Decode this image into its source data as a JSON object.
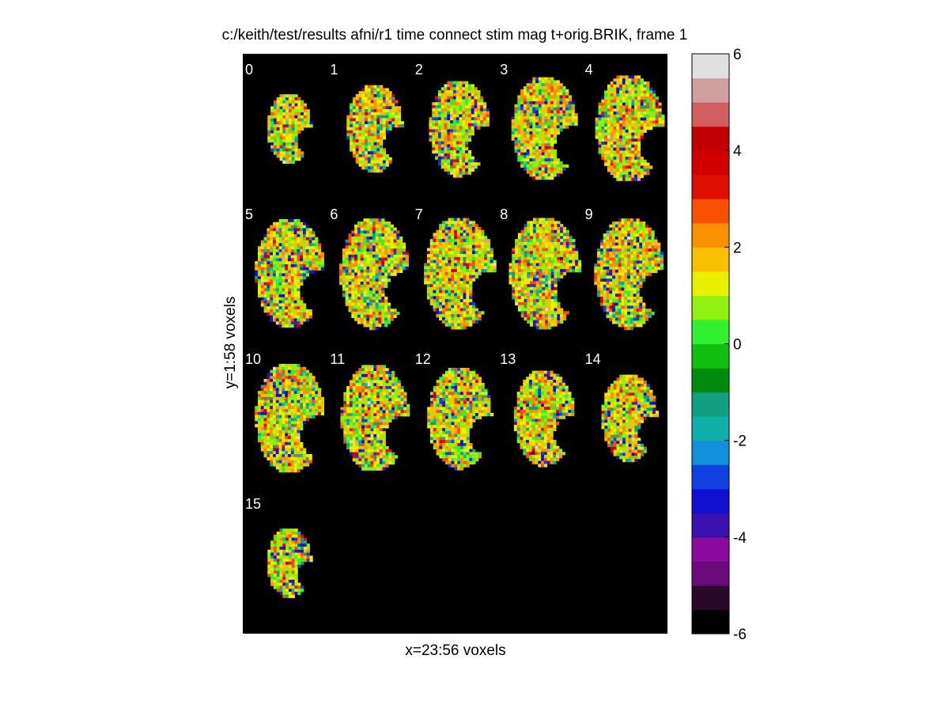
{
  "chart_data": {
    "type": "heatmap",
    "title": "c:/keith/test/results afni/r1 time connect stim mag t+orig.BRIK, frame 1",
    "xlabel": "x=23:56 voxels",
    "ylabel": "y=1:58 voxels",
    "slice_labels": [
      "0",
      "1",
      "2",
      "3",
      "4",
      "5",
      "6",
      "7",
      "8",
      "9",
      "10",
      "11",
      "12",
      "13",
      "14",
      "15"
    ],
    "grid_columns": 5,
    "background": "#000000",
    "colorbar": {
      "min": -6,
      "max": 6,
      "ticks": [
        6,
        4,
        2,
        0,
        -2,
        -4,
        -6
      ],
      "tick_labels": [
        "6",
        "4",
        "2",
        "0",
        "-2",
        "-4",
        "-6"
      ],
      "colormap": [
        "#000000",
        "#2a0a2a",
        "#6a0a7a",
        "#8a0aa0",
        "#3a10b0",
        "#1010d0",
        "#1040e0",
        "#1090d8",
        "#10b0a8",
        "#10a080",
        "#008a10",
        "#10c010",
        "#30f030",
        "#90f010",
        "#e8f000",
        "#f8c000",
        "#f89000",
        "#f85000",
        "#e01000",
        "#d00000",
        "#c00000",
        "#d06060",
        "#d0a0a0",
        "#e0e0e0"
      ]
    },
    "voxel_value_distribution": "mostly 0 to 2 (green/yellow), sparse -3 (blue) and 4-6 (red)"
  }
}
